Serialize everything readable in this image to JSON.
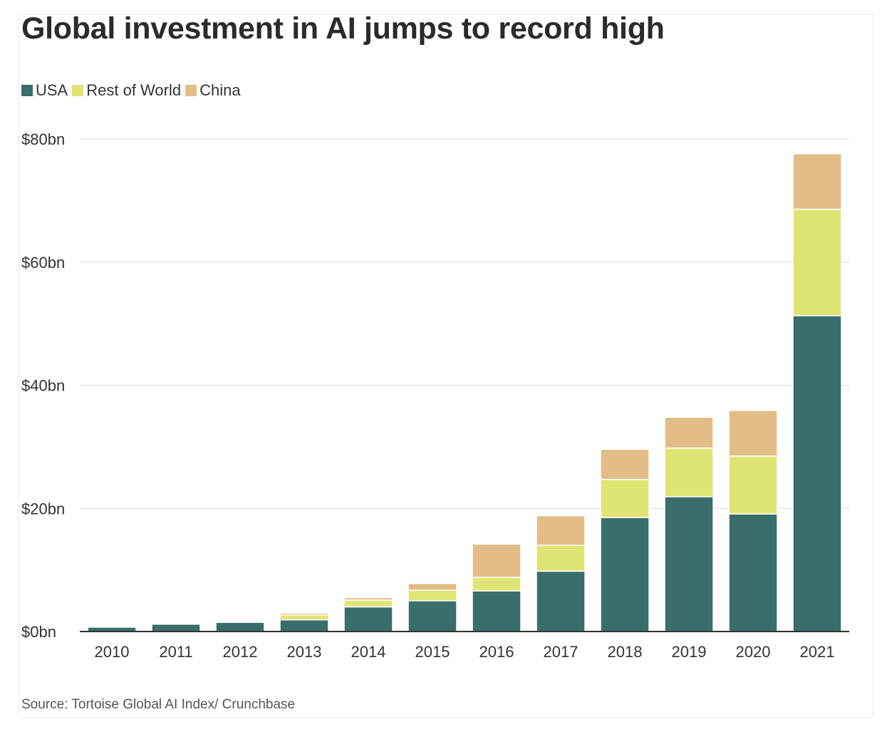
{
  "title": "Global investment in AI jumps to record high",
  "source": "Source: Tortoise Global AI Index/ Crunchbase",
  "legend": [
    {
      "label": "USA",
      "color": "#3a6e6c"
    },
    {
      "label": "Rest of World",
      "color": "#dfe575"
    },
    {
      "label": "China",
      "color": "#e2bd87"
    }
  ],
  "chart_data": {
    "type": "bar",
    "stacked": true,
    "title": "Global investment in AI jumps to record high",
    "categories": [
      "2010",
      "2011",
      "2012",
      "2013",
      "2014",
      "2015",
      "2016",
      "2017",
      "2018",
      "2019",
      "2020",
      "2021"
    ],
    "series": [
      {
        "name": "USA",
        "color": "#3a6e6c",
        "values": [
          0.7,
          1.2,
          1.5,
          1.9,
          4.0,
          5.0,
          6.6,
          9.8,
          18.5,
          21.9,
          19.1,
          51.3
        ]
      },
      {
        "name": "Rest of World",
        "color": "#dfe575",
        "values": [
          0.0,
          0.1,
          0.1,
          0.8,
          1.1,
          1.7,
          2.2,
          4.2,
          6.2,
          7.9,
          9.4,
          17.3
        ]
      },
      {
        "name": "China",
        "color": "#e2bd87",
        "values": [
          0.0,
          0.0,
          0.0,
          0.3,
          0.4,
          1.1,
          5.4,
          4.8,
          4.9,
          5.0,
          7.4,
          9.0
        ]
      }
    ],
    "yticks": [
      {
        "value": 0,
        "label": "$0bn"
      },
      {
        "value": 20,
        "label": "$20bn"
      },
      {
        "value": 40,
        "label": "$40bn"
      },
      {
        "value": 60,
        "label": "$60bn"
      },
      {
        "value": 80,
        "label": "$80bn"
      }
    ],
    "ylim": [
      0,
      80
    ],
    "grid": true,
    "legend_position": "top-left"
  }
}
